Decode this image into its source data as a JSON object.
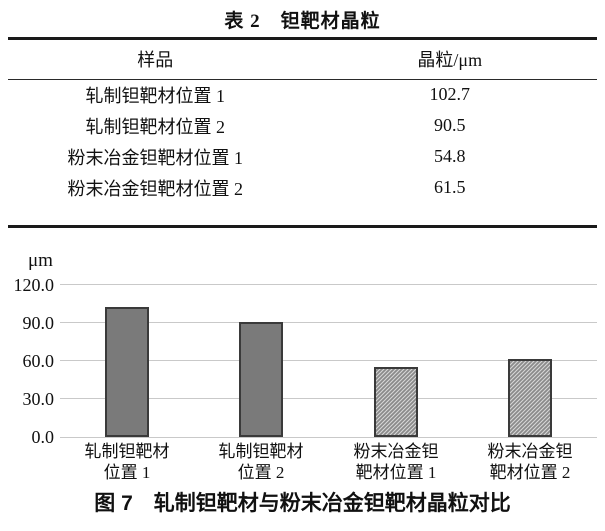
{
  "table": {
    "title": "表 2　钽靶材晶粒",
    "columns": [
      "样品",
      "晶粒/μm"
    ],
    "rows": [
      {
        "sample": "轧制钽靶材位置 1",
        "grain": "102.7"
      },
      {
        "sample": "轧制钽靶材位置 2",
        "grain": "90.5"
      },
      {
        "sample": "粉末冶金钽靶材位置 1",
        "grain": "54.8"
      },
      {
        "sample": "粉末冶金钽靶材位置 2",
        "grain": "61.5"
      }
    ]
  },
  "chart_data": {
    "type": "bar",
    "unit_label": "μm",
    "categories": [
      "轧制钽靶材\n位置 1",
      "轧制钽靶材\n位置 2",
      "粉末冶金钽\n靶材位置 1",
      "粉末冶金钽\n靶材位置 2"
    ],
    "values": [
      102.7,
      90.5,
      54.8,
      61.5
    ],
    "bar_styles": [
      "solid",
      "solid",
      "hatched",
      "hatched"
    ],
    "yticks": [
      0,
      30,
      60,
      90,
      120
    ],
    "ytick_labels": [
      "0.0",
      "30.0",
      "60.0",
      "90.0",
      "120.0"
    ],
    "ylim": [
      0,
      130
    ],
    "grid": true,
    "legend": "none",
    "colors": {
      "bar_fill": "#7a7a7a",
      "bar_border": "#3a3a3a",
      "hatch_base": "#8a8a8a",
      "hatch_line": "#d6d6d6",
      "gridline": "#c9c9c9",
      "text": "#111111"
    }
  },
  "figure": {
    "caption": "图 7　轧制钽靶材与粉末冶金钽靶材晶粒对比"
  }
}
